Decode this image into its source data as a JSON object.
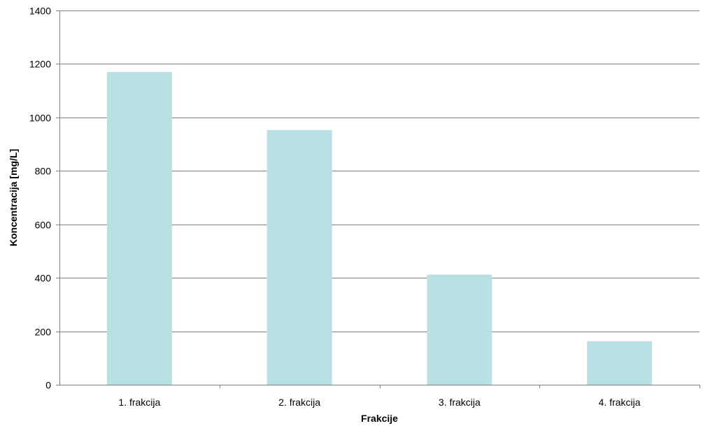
{
  "chart_data": {
    "type": "bar",
    "categories": [
      "1. frakcija",
      "2. frakcija",
      "3. frakcija",
      "4. frakcija"
    ],
    "values": [
      1170,
      953,
      412,
      163
    ],
    "xlabel": "Frakcije",
    "ylabel": "Koncentracija [mg/L]",
    "ylim": [
      0,
      1400
    ],
    "yticks": [
      0,
      200,
      400,
      600,
      800,
      1000,
      1200,
      1400
    ],
    "grid": true,
    "legend": "none",
    "bar_color": "#b9e0e3",
    "grid_color": "#808080"
  }
}
